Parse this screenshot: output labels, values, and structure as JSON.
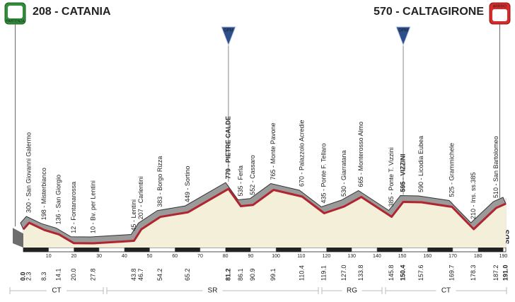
{
  "chart_data": {
    "type": "area",
    "x": [
      0.0,
      2.3,
      8.3,
      14.1,
      20.0,
      27.8,
      43.8,
      46.7,
      54.2,
      65.2,
      81.2,
      86.1,
      90.9,
      99.1,
      110.4,
      119.1,
      127.0,
      133.8,
      145.8,
      150.4,
      157.6,
      169.7,
      178.3,
      187.2,
      191.0
    ],
    "x_labels": [
      "0.0",
      "2.3",
      "8.3",
      "14.1",
      "20.0",
      "27.8",
      "43.8",
      "46.7",
      "54.2",
      "65.2",
      "81.2",
      "86.1",
      "90.9",
      "99.1",
      "110.4",
      "119.1",
      "127.0",
      "133.8",
      "145.8",
      "150.4",
      "157.6",
      "169.7",
      "178.3",
      "187.2",
      "191.0"
    ],
    "values": [
      208,
      300,
      198,
      136,
      12,
      10,
      45,
      207,
      383,
      449,
      779,
      535,
      552,
      765,
      670,
      435,
      530,
      665,
      385,
      595,
      590,
      525,
      210,
      510,
      570
    ],
    "value_labels": [
      "208 - CATANIA",
      "300 - San Giovanni Galermo",
      "198 - Misterbianco",
      "136 - San Giorgio",
      "12 - Fontanarossa",
      "10 - Bv. per Lentini",
      "45 - Lentini",
      "207 - Carlentini",
      "383 - Borgo Rizza",
      "449 - Sortino",
      "779 - PIETRE CALDE",
      "535 - Ferla",
      "552 - Cassaro",
      "765 - Monte Pavone",
      "670 - Palazzolo Acredie",
      "435 - Ponte F. Tellaro",
      "530 - Giarratana",
      "665 - Monterosso Almo",
      "385 - Ponte T. Vizzini",
      "595 - VIZZINI",
      "590 - Licodia Eubea",
      "525 - Grammichele",
      "210 - Ins. ss.385",
      "510 - San Bartolomeo",
      "570 - CALTAGIRONE"
    ],
    "color": "#b0252f",
    "xlim": [
      0,
      191
    ],
    "xticks": [
      10,
      20,
      30,
      40,
      50,
      60,
      70,
      80,
      90,
      100,
      110,
      120,
      130,
      140,
      150,
      160,
      170,
      180,
      190
    ],
    "ylim": [
      0,
      1000
    ],
    "annotations": [
      {
        "text": "GPM",
        "x": 81.2
      },
      {
        "text": "GPM",
        "x": 150.4
      }
    ],
    "regions": [
      "CT",
      "SR",
      "RG",
      "CT"
    ],
    "start_icon": "PARTENZA",
    "finish_icon": "ARRIVO",
    "logo": "SDS"
  }
}
